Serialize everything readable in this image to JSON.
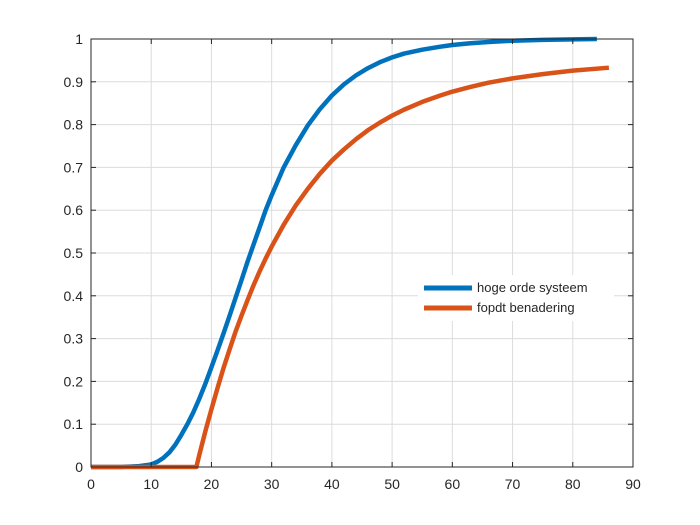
{
  "chart_data": {
    "type": "line",
    "title": "",
    "xlabel": "",
    "ylabel": "",
    "xlim": [
      0,
      90
    ],
    "ylim": [
      0,
      1
    ],
    "xticks": [
      0,
      10,
      20,
      30,
      40,
      50,
      60,
      70,
      80,
      90
    ],
    "yticks": [
      0,
      0.1,
      0.2,
      0.3,
      0.4,
      0.5,
      0.6,
      0.7,
      0.8,
      0.9,
      1
    ],
    "xtick_labels": [
      "0",
      "10",
      "20",
      "30",
      "40",
      "50",
      "60",
      "70",
      "80",
      "90"
    ],
    "ytick_labels": [
      "0",
      "0.1",
      "0.2",
      "0.3",
      "0.4",
      "0.5",
      "0.6",
      "0.7",
      "0.8",
      "0.9",
      "1"
    ],
    "grid": true,
    "legend_position": "right",
    "series": [
      {
        "name": "hoge orde systeem",
        "color": "#0072BD",
        "x": [
          0,
          5,
          8,
          10,
          11,
          12,
          13,
          14,
          15,
          16,
          17,
          18,
          19,
          20,
          21,
          22,
          23,
          24,
          25,
          26,
          27,
          28,
          29,
          30,
          32,
          34,
          36,
          38,
          40,
          42,
          44,
          46,
          48,
          50,
          52,
          55,
          58,
          60,
          63,
          66,
          70,
          75,
          80,
          84
        ],
        "y": [
          0,
          0,
          0.002,
          0.006,
          0.012,
          0.021,
          0.034,
          0.052,
          0.075,
          0.1,
          0.128,
          0.16,
          0.195,
          0.233,
          0.272,
          0.312,
          0.353,
          0.395,
          0.437,
          0.48,
          0.52,
          0.56,
          0.6,
          0.635,
          0.7,
          0.752,
          0.798,
          0.836,
          0.868,
          0.894,
          0.915,
          0.932,
          0.946,
          0.957,
          0.966,
          0.975,
          0.982,
          0.986,
          0.99,
          0.993,
          0.996,
          0.998,
          0.999,
          1.0
        ]
      },
      {
        "name": "fopdt benadering",
        "color": "#D95319",
        "x": [
          0,
          17.5,
          18,
          19,
          20,
          21,
          22,
          23,
          24,
          25,
          26,
          27,
          28,
          29,
          30,
          32,
          34,
          36,
          38,
          40,
          42,
          44,
          46,
          48,
          50,
          52,
          55,
          58,
          60,
          63,
          66,
          70,
          75,
          80,
          86
        ],
        "y": [
          0,
          0,
          0.029,
          0.084,
          0.135,
          0.184,
          0.231,
          0.274,
          0.316,
          0.354,
          0.39,
          0.425,
          0.457,
          0.487,
          0.515,
          0.566,
          0.611,
          0.65,
          0.685,
          0.716,
          0.742,
          0.766,
          0.787,
          0.805,
          0.821,
          0.835,
          0.853,
          0.868,
          0.877,
          0.888,
          0.898,
          0.908,
          0.918,
          0.926,
          0.933
        ]
      }
    ]
  }
}
